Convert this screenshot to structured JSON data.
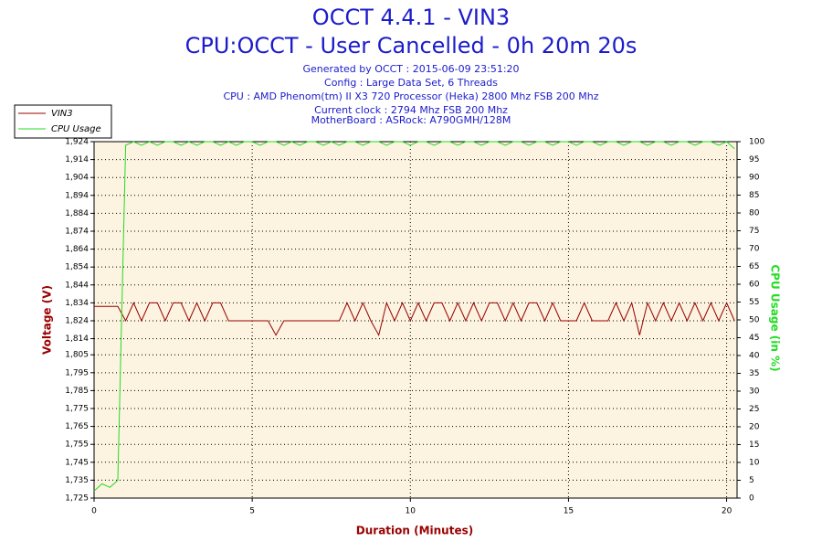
{
  "chart_data": {
    "type": "line",
    "title": "OCCT 4.4.1 - VIN3",
    "subtitle": "CPU:OCCT - User Cancelled - 0h 20m 20s",
    "info": [
      "Generated by OCCT : 2015-06-09 23:51:20",
      "Config : Large Data Set, 6 Threads",
      "CPU : AMD Phenom(tm) II X3 720 Processor (Heka) 2800 Mhz FSB 200 Mhz",
      "Current clock : 2794 Mhz FSB 200 Mhz",
      "MotherBoard : ASRock: A790GMH/128M"
    ],
    "xlabel": "Duration (Minutes)",
    "ylabel": "Voltage (V)",
    "y2label": "CPU Usage (in %)",
    "xlim": [
      0,
      20.33
    ],
    "xticks": [
      0,
      5,
      10,
      15,
      20
    ],
    "ylim": [
      1.725,
      1.924
    ],
    "yticks": [
      {
        "value": 1.725,
        "label": "1,725"
      },
      {
        "value": 1.735,
        "label": "1,735"
      },
      {
        "value": 1.745,
        "label": "1,745"
      },
      {
        "value": 1.755,
        "label": "1,755"
      },
      {
        "value": 1.765,
        "label": "1,765"
      },
      {
        "value": 1.775,
        "label": "1,775"
      },
      {
        "value": 1.785,
        "label": "1,785"
      },
      {
        "value": 1.795,
        "label": "1,795"
      },
      {
        "value": 1.805,
        "label": "1,805"
      },
      {
        "value": 1.814,
        "label": "1,814"
      },
      {
        "value": 1.824,
        "label": "1,824"
      },
      {
        "value": 1.834,
        "label": "1,834"
      },
      {
        "value": 1.844,
        "label": "1,844"
      },
      {
        "value": 1.854,
        "label": "1,854"
      },
      {
        "value": 1.864,
        "label": "1,864"
      },
      {
        "value": 1.874,
        "label": "1,874"
      },
      {
        "value": 1.884,
        "label": "1,884"
      },
      {
        "value": 1.894,
        "label": "1,894"
      },
      {
        "value": 1.904,
        "label": "1,904"
      },
      {
        "value": 1.914,
        "label": "1,914"
      },
      {
        "value": 1.924,
        "label": "1,924"
      }
    ],
    "y2lim": [
      0,
      100
    ],
    "y2ticks": [
      0,
      5,
      10,
      15,
      20,
      25,
      30,
      35,
      40,
      45,
      50,
      55,
      60,
      65,
      70,
      75,
      80,
      85,
      90,
      95,
      100
    ],
    "grid": true,
    "legend": "top-left",
    "x": [
      0,
      0.25,
      0.5,
      0.75,
      1,
      1.25,
      1.5,
      1.75,
      2,
      2.25,
      2.5,
      2.75,
      3,
      3.25,
      3.5,
      3.75,
      4,
      4.25,
      4.5,
      4.75,
      5,
      5.25,
      5.5,
      5.75,
      6,
      6.25,
      6.5,
      6.75,
      7,
      7.25,
      7.5,
      7.75,
      8,
      8.25,
      8.5,
      8.75,
      9,
      9.25,
      9.5,
      9.75,
      10,
      10.25,
      10.5,
      10.75,
      11,
      11.25,
      11.5,
      11.75,
      12,
      12.25,
      12.5,
      12.75,
      13,
      13.25,
      13.5,
      13.75,
      14,
      14.25,
      14.5,
      14.75,
      15,
      15.25,
      15.5,
      15.75,
      16,
      16.25,
      16.5,
      16.75,
      17,
      17.25,
      17.5,
      17.75,
      18,
      18.25,
      18.5,
      18.75,
      19,
      19.25,
      19.5,
      19.75,
      20,
      20.25
    ],
    "series": [
      {
        "name": "VIN3",
        "color": "#990000",
        "axis": "y",
        "values": [
          1.832,
          1.832,
          1.832,
          1.832,
          1.824,
          1.834,
          1.824,
          1.834,
          1.834,
          1.824,
          1.834,
          1.834,
          1.824,
          1.834,
          1.824,
          1.834,
          1.834,
          1.824,
          1.824,
          1.824,
          1.824,
          1.824,
          1.824,
          1.816,
          1.824,
          1.824,
          1.824,
          1.824,
          1.824,
          1.824,
          1.824,
          1.824,
          1.834,
          1.824,
          1.834,
          1.824,
          1.816,
          1.834,
          1.824,
          1.834,
          1.824,
          1.834,
          1.824,
          1.834,
          1.834,
          1.824,
          1.834,
          1.824,
          1.834,
          1.824,
          1.834,
          1.834,
          1.824,
          1.834,
          1.824,
          1.834,
          1.834,
          1.824,
          1.834,
          1.824,
          1.824,
          1.824,
          1.834,
          1.824,
          1.824,
          1.824,
          1.834,
          1.824,
          1.834,
          1.816,
          1.834,
          1.824,
          1.834,
          1.824,
          1.834,
          1.824,
          1.834,
          1.824,
          1.834,
          1.824,
          1.834,
          1.824
        ]
      },
      {
        "name": "CPU Usage",
        "color": "#22dd22",
        "axis": "y2",
        "values": [
          2,
          4,
          3,
          5,
          99,
          100,
          99,
          100,
          99,
          100,
          100,
          99,
          100,
          99,
          100,
          100,
          99,
          100,
          99,
          100,
          100,
          99,
          100,
          100,
          99,
          100,
          99,
          100,
          100,
          99,
          100,
          99,
          100,
          100,
          99,
          100,
          100,
          99,
          100,
          100,
          99,
          100,
          100,
          99,
          100,
          100,
          99,
          100,
          100,
          99,
          100,
          100,
          99,
          100,
          100,
          99,
          100,
          100,
          99,
          100,
          100,
          99,
          100,
          100,
          99,
          100,
          100,
          99,
          100,
          100,
          99,
          100,
          100,
          99,
          100,
          100,
          99,
          100,
          100,
          99,
          100,
          98
        ]
      }
    ]
  }
}
